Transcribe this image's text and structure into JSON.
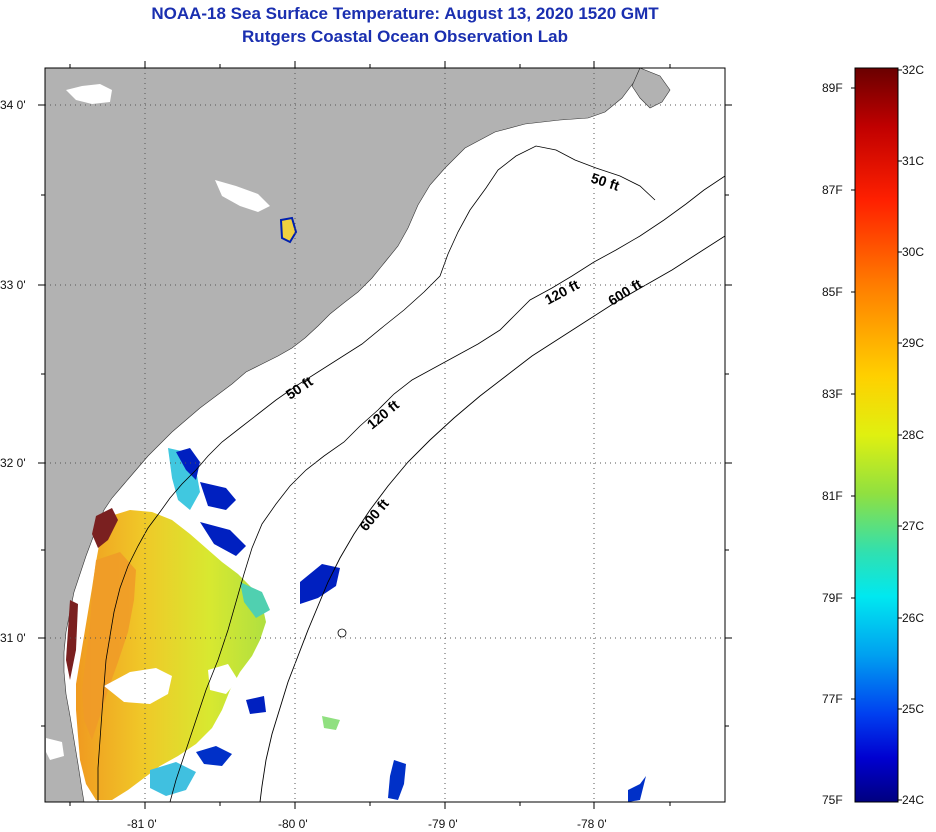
{
  "title": "NOAA-18 Sea Surface Temperature:  August 13, 2020 1520 GMT",
  "subtitle": "Rutgers Coastal Ocean Observation Lab",
  "map": {
    "y_ticks": [
      "34 0'",
      "33 0'",
      "32 0'",
      "31 0'"
    ],
    "x_ticks": [
      "-81 0'",
      "-80 0'",
      "-79 0'",
      "-78 0'"
    ],
    "contour_labels": [
      "50 ft",
      "50 ft",
      "120 ft",
      "120 ft",
      "600 ft",
      "600 ft"
    ],
    "colors": {
      "land": "#b2b2b2",
      "ocean": "#ffffff",
      "warm": "#f0c020",
      "mid": "#c8e830",
      "cool": "#40c0e0",
      "cold": "#0020b0",
      "hot": "#7a2020"
    }
  },
  "colorbar": {
    "fahrenheit_labels": [
      "89F",
      "87F",
      "85F",
      "83F",
      "81F",
      "79F",
      "77F",
      "75F"
    ],
    "celsius_labels": [
      "32C",
      "31C",
      "30C",
      "29C",
      "28C",
      "27C",
      "26C",
      "25C",
      "24C"
    ],
    "min_c": 24,
    "max_c": 32
  }
}
